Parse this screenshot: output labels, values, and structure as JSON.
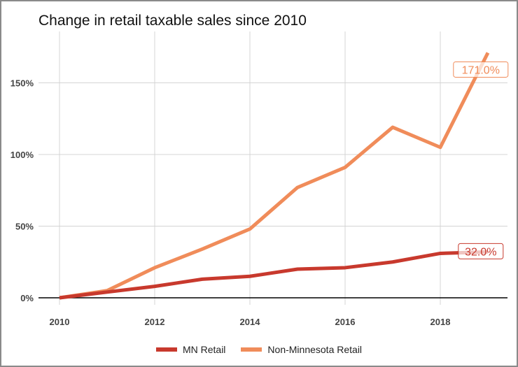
{
  "chart_data": {
    "type": "line",
    "title": "Change in retail taxable sales since 2010",
    "xlabel": "",
    "ylabel": "",
    "x": [
      2010,
      2011,
      2012,
      2013,
      2014,
      2015,
      2016,
      2017,
      2018,
      2019
    ],
    "xlim": [
      2010,
      2019.1
    ],
    "ylim": [
      -8,
      178
    ],
    "x_ticks": [
      2010,
      2012,
      2014,
      2016,
      2018
    ],
    "x_tick_labels": [
      "2010",
      "2012",
      "2014",
      "2016",
      "2018"
    ],
    "y_ticks": [
      0,
      50,
      100,
      150
    ],
    "y_tick_labels": [
      "0%",
      "50%",
      "100%",
      "150%"
    ],
    "grid": true,
    "legend_position": "bottom",
    "series": [
      {
        "name": "MN Retail",
        "color": "#c8392d",
        "values": [
          0,
          4,
          8,
          13,
          15,
          20,
          21,
          25,
          31,
          32
        ],
        "end_label": "32.0%"
      },
      {
        "name": "Non-Minnesota Retail",
        "color": "#f08c5a",
        "values": [
          0,
          5,
          21,
          34,
          48,
          77,
          91,
          119,
          105,
          171
        ],
        "end_label": "171.0%"
      }
    ]
  }
}
